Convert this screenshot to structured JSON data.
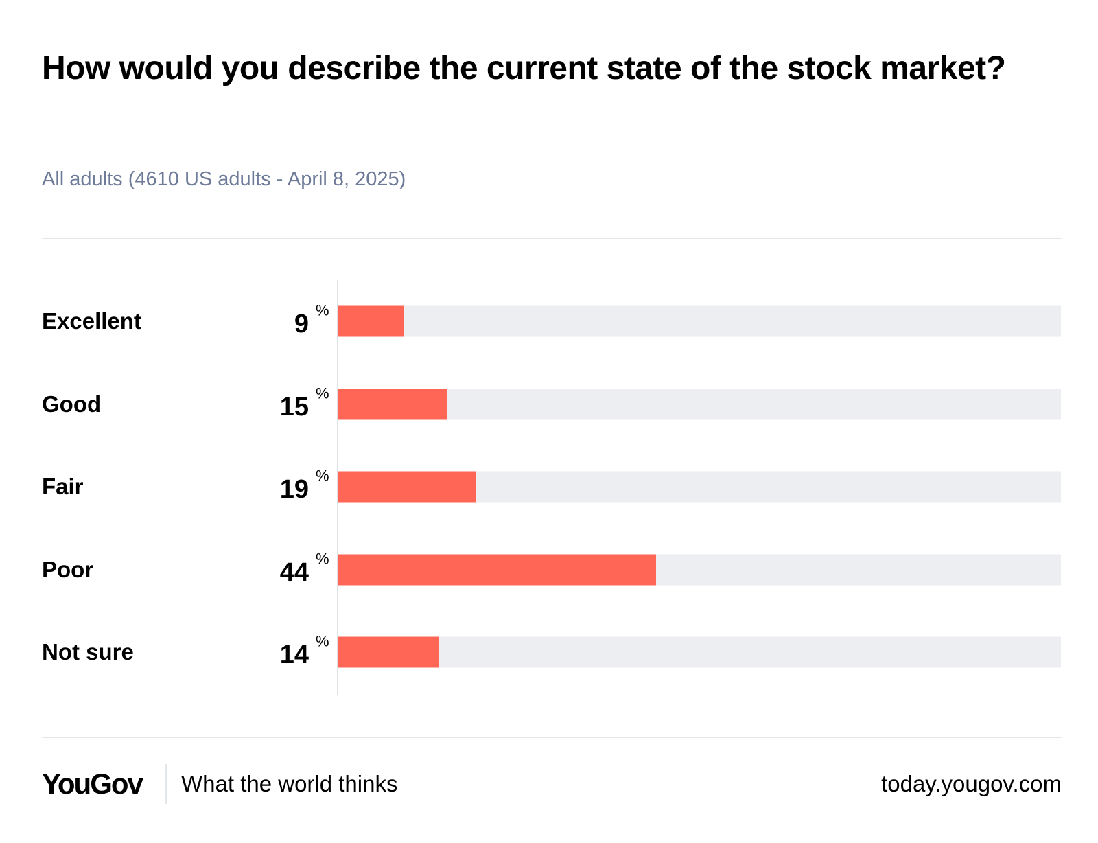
{
  "chart_data": {
    "type": "bar",
    "orientation": "horizontal",
    "title": "How would you describe the current state of the stock market?",
    "subtitle": "All adults (4610 US adults - April 8, 2025)",
    "categories": [
      "Excellent",
      "Good",
      "Fair",
      "Poor",
      "Not sure"
    ],
    "values": [
      9,
      15,
      19,
      44,
      14
    ],
    "unit": "%",
    "xlim": [
      0,
      100
    ],
    "bar_color": "#ff6655",
    "track_color": "#eceef2"
  },
  "footer": {
    "logo": "YouGov",
    "tagline": "What the world thinks",
    "url": "today.yougov.com"
  }
}
